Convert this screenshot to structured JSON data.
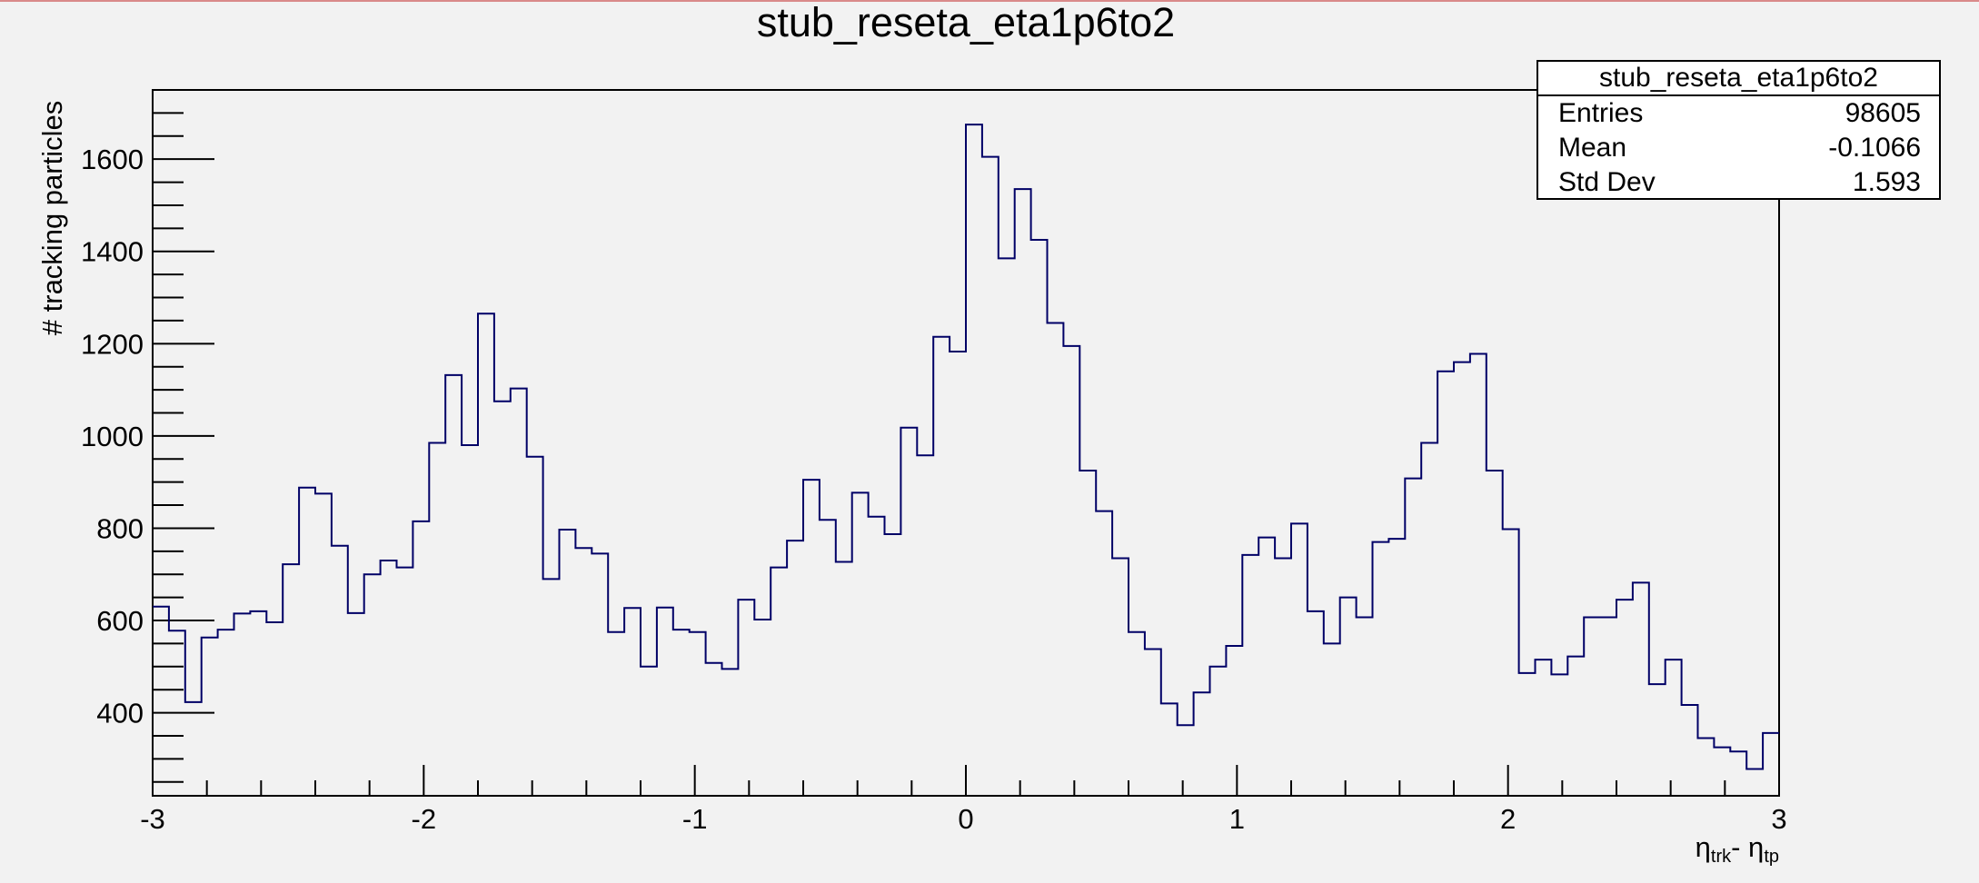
{
  "chart_data": {
    "type": "histogram",
    "title": "stub_reseta_eta1p6to2",
    "ylabel": "# tracking particles",
    "xlabel": {
      "main": "η",
      "sub1": "trk",
      "mid": "- η",
      "sub2": "tp"
    },
    "xlim": [
      -3,
      3
    ],
    "ylim": [
      220,
      1750
    ],
    "x_ticks": [
      "-3",
      "-2",
      "-1",
      "0",
      "1",
      "2",
      "3"
    ],
    "y_ticks": [
      "400",
      "600",
      "800",
      "1000",
      "1200",
      "1400",
      "1600"
    ],
    "bin_width": 0.06,
    "series": [
      {
        "line_color": "#000066",
        "values": [
          630,
          578,
          423,
          563,
          580,
          615,
          620,
          596,
          722,
          888,
          875,
          762,
          616,
          700,
          730,
          715,
          815,
          985,
          1132,
          980,
          1265,
          1075,
          1103,
          955,
          690,
          797,
          757,
          745,
          575,
          627,
          500,
          628,
          580,
          575,
          508,
          495,
          645,
          602,
          715,
          773,
          905,
          818,
          727,
          877,
          825,
          787,
          1018,
          958,
          1215,
          1183,
          1675,
          1605,
          1385,
          1535,
          1425,
          1245,
          1195,
          925,
          837,
          735,
          575,
          538,
          420,
          373,
          444,
          500,
          545,
          742,
          780,
          735,
          810,
          620,
          550,
          650,
          607,
          770,
          777,
          908,
          985,
          1140,
          1160,
          1178,
          925,
          798,
          486,
          515,
          483,
          522,
          607,
          607,
          645,
          682,
          462,
          515,
          417,
          345,
          325,
          316,
          278,
          356
        ]
      }
    ],
    "stats": {
      "title": "stub_reseta_eta1p6to2",
      "rows": [
        {
          "label": "Entries",
          "value": "98605"
        },
        {
          "label": "Mean",
          "value": "-0.1066"
        },
        {
          "label": "Std Dev",
          "value": "1.593"
        }
      ]
    }
  }
}
